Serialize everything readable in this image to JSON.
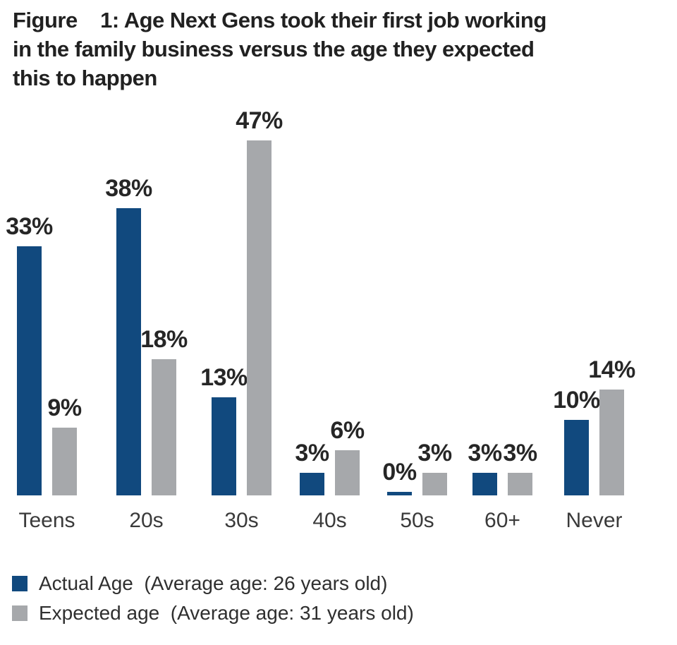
{
  "figure": {
    "title": "Figure    1: Age Next Gens took their first job working\nin the family business versus the age they expected\nthis to happen"
  },
  "chart_data": {
    "type": "bar",
    "title": "Figure 1: Age Next Gens took their first job working in the family business versus the age they expected this to happen",
    "categories": [
      "Teens",
      "20s",
      "30s",
      "40s",
      "50s",
      "60+",
      "Never"
    ],
    "series": [
      {
        "name": "Actual Age",
        "annotation": "Average age: 26 years old",
        "color": "#11497e",
        "values": [
          33,
          38,
          13,
          3,
          0,
          3,
          10
        ]
      },
      {
        "name": "Expected age",
        "annotation": "Average age: 31 years old",
        "color": "#a6a8ab",
        "values": [
          9,
          18,
          47,
          6,
          3,
          3,
          14
        ]
      }
    ],
    "value_suffix": "%",
    "xlabel": "",
    "ylabel": "",
    "ylim": [
      0,
      50
    ],
    "grid": false,
    "legend_position": "bottom-left",
    "value_labels_shown": true
  },
  "legend": {
    "items": [
      {
        "label": "Actual Age  (Average age: 26 years old)",
        "color": "#11497e"
      },
      {
        "label": "Expected age  (Average age: 31 years old)",
        "color": "#a6a8ab"
      }
    ]
  }
}
